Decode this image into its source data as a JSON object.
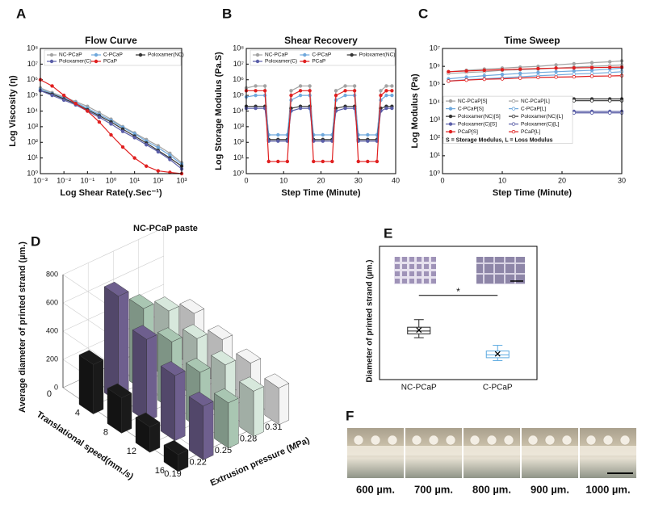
{
  "chart_data": [
    {
      "type": "line",
      "panel": "A",
      "title": "Flow Curve",
      "xlabel": "Log Shear Rate(γ.Sec⁻¹)",
      "ylabel": "Log Viscosity (η)",
      "xscale": "log",
      "yscale": "log",
      "xlim": [
        0.001,
        1000
      ],
      "ylim": [
        1,
        100000000
      ],
      "xticks": [
        {
          "value": 0.001,
          "label": "10⁻³"
        },
        {
          "value": 0.01,
          "label": "10⁻²"
        },
        {
          "value": 0.1,
          "label": "10⁻¹"
        },
        {
          "value": 1,
          "label": "10⁰"
        },
        {
          "value": 10,
          "label": "10¹"
        },
        {
          "value": 100,
          "label": "10²"
        },
        {
          "value": 1000,
          "label": "10³"
        }
      ],
      "yticks": [
        {
          "value": 1,
          "label": "10⁰"
        },
        {
          "value": 10,
          "label": "10¹"
        },
        {
          "value": 100,
          "label": "10²"
        },
        {
          "value": 1000,
          "label": "10³"
        },
        {
          "value": 10000,
          "label": "10⁴"
        },
        {
          "value": 100000,
          "label": "10⁵"
        },
        {
          "value": 1000000,
          "label": "10⁶"
        },
        {
          "value": 10000000,
          "label": "10⁷"
        },
        {
          "value": 100000000,
          "label": "10⁸"
        }
      ],
      "legend": "upper center",
      "x": [
        0.001,
        0.00316,
        0.01,
        0.0316,
        0.1,
        0.316,
        1,
        3.16,
        10,
        31.6,
        100,
        316,
        1000
      ],
      "series": [
        {
          "name": "NC-PCaP",
          "color": "#a3a3a3",
          "values": [
            300000,
            150000,
            80000,
            40000,
            20000,
            8000,
            3000,
            1000,
            400,
            150,
            60,
            20,
            5
          ]
        },
        {
          "name": "C-PCaP",
          "color": "#6fa8dc",
          "values": [
            250000,
            130000,
            70000,
            35000,
            15000,
            6000,
            2500,
            900,
            350,
            120,
            45,
            15,
            4
          ]
        },
        {
          "name": "Poloxamer(NC)",
          "color": "#333333",
          "values": [
            200000,
            120000,
            60000,
            30000,
            12000,
            5000,
            2000,
            700,
            250,
            90,
            30,
            10,
            3
          ]
        },
        {
          "name": "Poloxamer(C)",
          "color": "#5b5fa8",
          "values": [
            200000,
            100000,
            50000,
            25000,
            10000,
            4000,
            1500,
            500,
            200,
            70,
            25,
            8,
            2
          ]
        },
        {
          "name": "PCaP",
          "color": "#e02020",
          "values": [
            1000000,
            400000,
            100000,
            30000,
            10000,
            2000,
            300,
            50,
            10,
            3,
            1.5,
            1.2,
            1
          ]
        }
      ]
    },
    {
      "type": "line",
      "panel": "B",
      "title": "Shear Recovery",
      "xlabel": "Step Time (Minute)",
      "ylabel": "Log Storage Modulus (Pa.S)",
      "xscale": "linear",
      "yscale": "log",
      "xlim": [
        0,
        40
      ],
      "ylim": [
        1,
        100000000
      ],
      "xticks": [
        0,
        10,
        20,
        30,
        40
      ],
      "yticks": [
        {
          "value": 1,
          "label": "10⁰"
        },
        {
          "value": 10,
          "label": "10¹"
        },
        {
          "value": 100,
          "label": "10²"
        },
        {
          "value": 1000,
          "label": "10³"
        },
        {
          "value": 10000,
          "label": "10⁴"
        },
        {
          "value": 100000,
          "label": "10⁵"
        },
        {
          "value": 1000000,
          "label": "10⁶"
        },
        {
          "value": 10000000,
          "label": "10⁷"
        },
        {
          "value": 100000000,
          "label": "10⁸"
        }
      ],
      "legend": "upper center",
      "x": [
        0,
        2.5,
        5,
        6,
        8.5,
        11,
        12,
        14.5,
        17,
        18,
        20.5,
        23,
        24,
        26.5,
        29,
        30,
        32.5,
        35,
        36,
        37.5,
        39
      ],
      "series": [
        {
          "name": "NC-PCaP",
          "color": "#a3a3a3",
          "values": [
            300000,
            400000,
            400000,
            150,
            150,
            150,
            200000,
            400000,
            400000,
            150,
            150,
            150,
            200000,
            400000,
            400000,
            150,
            150,
            150,
            200000,
            400000,
            400000
          ]
        },
        {
          "name": "C-PCaP",
          "color": "#6fa8dc",
          "values": [
            80000,
            100000,
            100000,
            300,
            300,
            300,
            50000,
            100000,
            100000,
            300,
            300,
            300,
            50000,
            100000,
            100000,
            300,
            300,
            300,
            50000,
            100000,
            100000
          ]
        },
        {
          "name": "Poloxamer(NC)",
          "color": "#333333",
          "values": [
            20000,
            20000,
            20000,
            150,
            150,
            150,
            15000,
            20000,
            20000,
            150,
            150,
            150,
            15000,
            20000,
            20000,
            150,
            150,
            150,
            15000,
            20000,
            20000
          ]
        },
        {
          "name": "Poloxamer(C)",
          "color": "#5b5fa8",
          "values": [
            15000,
            15000,
            15000,
            120,
            120,
            120,
            10000,
            15000,
            15000,
            120,
            120,
            120,
            10000,
            15000,
            15000,
            120,
            120,
            120,
            10000,
            15000,
            15000
          ]
        },
        {
          "name": "PCaP",
          "color": "#e02020",
          "values": [
            200000,
            200000,
            200000,
            6,
            6,
            6,
            100000,
            200000,
            200000,
            6,
            6,
            6,
            100000,
            200000,
            200000,
            6,
            6,
            6,
            100000,
            200000,
            200000
          ]
        }
      ]
    },
    {
      "type": "line",
      "panel": "C",
      "title": "Time Sweep",
      "xlabel": "Step Time (Minute)",
      "ylabel": "Log Modulus (Pa)",
      "xscale": "linear",
      "yscale": "log",
      "xlim": [
        0,
        30
      ],
      "ylim": [
        1,
        10000000
      ],
      "xticks": [
        0,
        10,
        20,
        30
      ],
      "yticks": [
        {
          "value": 1,
          "label": "10⁰"
        },
        {
          "value": 10,
          "label": "10¹"
        },
        {
          "value": 100,
          "label": "10²"
        },
        {
          "value": 1000,
          "label": "10³"
        },
        {
          "value": 10000,
          "label": "10⁴"
        },
        {
          "value": 100000,
          "label": "10⁵"
        },
        {
          "value": 1000000,
          "label": "10⁶"
        },
        {
          "value": 10000000,
          "label": "10⁷"
        }
      ],
      "legend": "center left",
      "note": "S = Storage Modulus, L = Loss Modulus",
      "x": [
        1,
        4,
        7,
        10,
        13,
        16,
        19,
        22,
        25,
        28,
        30
      ],
      "series": [
        {
          "name": "NC-PCaP[S]",
          "color": "#a3a3a3",
          "hollow": false,
          "values": [
            500000,
            600000,
            700000,
            800000,
            900000,
            1000000,
            1200000,
            1400000,
            1600000,
            1800000,
            2000000
          ]
        },
        {
          "name": "NC-PCaP[L]",
          "color": "#a3a3a3",
          "hollow": true,
          "values": [
            400000,
            450000,
            500000,
            600000,
            650000,
            700000,
            800000,
            900000,
            1000000,
            1100000,
            1200000
          ]
        },
        {
          "name": "C-PCaP[S]",
          "color": "#6fa8dc",
          "hollow": false,
          "values": [
            200000,
            250000,
            300000,
            350000,
            400000,
            450000,
            500000,
            550000,
            600000,
            700000,
            800000
          ]
        },
        {
          "name": "C-PCaP[L]",
          "color": "#6fa8dc",
          "hollow": true,
          "values": [
            150000,
            180000,
            200000,
            230000,
            260000,
            300000,
            330000,
            370000,
            400000,
            450000,
            500000
          ]
        },
        {
          "name": "Poloxamer(NC)[S]",
          "color": "#333333",
          "hollow": false,
          "values": [
            15000,
            15000,
            15000,
            15000,
            15000,
            15000,
            15000,
            15000,
            15000,
            15000,
            15000
          ]
        },
        {
          "name": "Poloxamer(NC)[L]",
          "color": "#333333",
          "hollow": true,
          "values": [
            12000,
            12000,
            12000,
            12000,
            12000,
            12000,
            12000,
            12000,
            12000,
            12000,
            12000
          ]
        },
        {
          "name": "Poloxamer(C)[S]",
          "color": "#5b5fa8",
          "hollow": false,
          "values": [
            3000,
            3000,
            3000,
            3000,
            3000,
            3000,
            3000,
            3000,
            3000,
            3000,
            3000
          ]
        },
        {
          "name": "Poloxamer(C)[L]",
          "color": "#5b5fa8",
          "hollow": true,
          "values": [
            2500,
            2500,
            2500,
            2500,
            2500,
            2500,
            2500,
            2500,
            2500,
            2500,
            2500
          ]
        },
        {
          "name": "PCaP[S]",
          "color": "#e02020",
          "hollow": false,
          "values": [
            500000,
            550000,
            600000,
            650000,
            700000,
            750000,
            800000,
            820000,
            850000,
            880000,
            900000
          ]
        },
        {
          "name": "PCaP[L]",
          "color": "#e02020",
          "hollow": true,
          "values": [
            150000,
            170000,
            190000,
            200000,
            220000,
            240000,
            250000,
            260000,
            280000,
            290000,
            300000
          ]
        }
      ]
    },
    {
      "type": "bar3d",
      "panel": "D",
      "title": "NC-PCaP paste",
      "zlabel": "Average diameter of printed strand (µm.)",
      "ylabel": "Translational speed(mm./s)",
      "xlabel": "Extrusion pressure (MPa)",
      "x": [
        0.19,
        0.22,
        0.25,
        0.28,
        0.31
      ],
      "y": [
        4,
        8,
        12,
        16
      ],
      "xlim": [
        0.19,
        0.31
      ],
      "ylim": [
        0,
        16
      ],
      "zlim": [
        0,
        800
      ],
      "xticks": [
        0.19,
        0.22,
        0.25,
        0.28,
        0.31
      ],
      "yticks": [
        0,
        4,
        8,
        12,
        16
      ],
      "zticks": [
        0,
        200,
        400,
        600,
        800
      ],
      "colors": [
        "#1a1a1a",
        "#6e5f8e",
        "#a9c6b2",
        "#d7e8dc",
        "#f4f4f4"
      ],
      "values": [
        [
          350,
          250,
          180,
          120
        ],
        [
          750,
          580,
          460,
          380
        ],
        [
          580,
          480,
          400,
          320
        ],
        [
          480,
          420,
          370,
          320
        ],
        [
          380,
          330,
          300,
          260
        ]
      ]
    },
    {
      "type": "box",
      "panel": "E",
      "ylabel": "Diameter of printed strand (µm.)",
      "ylim": [
        100,
        800
      ],
      "annotation": "*",
      "categories": [
        "NC-PCaP",
        "C-PCaP"
      ],
      "colors": [
        "#222222",
        "#5aa9e0"
      ],
      "min": [
        320,
        200
      ],
      "q1": [
        340,
        215
      ],
      "median": [
        355,
        230
      ],
      "q3": [
        375,
        250
      ],
      "max": [
        415,
        280
      ],
      "mean": [
        360,
        235
      ]
    }
  ],
  "photos": {
    "panel": "F",
    "labels": [
      "600 µm.",
      "700 µm.",
      "800 µm.",
      "900 µm.",
      "1000 µm."
    ]
  }
}
